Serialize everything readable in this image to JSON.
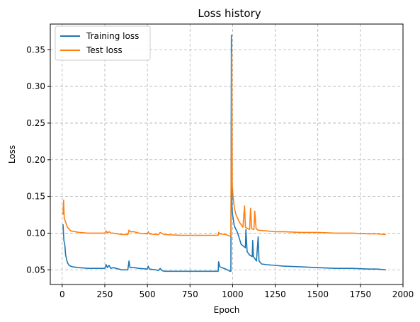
{
  "chart_data": {
    "type": "line",
    "title": "Loss history",
    "xlabel": "Epoch",
    "ylabel": "Loss",
    "xlim": [
      -70,
      2000
    ],
    "ylim": [
      0.03,
      0.385
    ],
    "xticks": [
      0,
      250,
      500,
      750,
      1000,
      1250,
      1500,
      1750,
      2000
    ],
    "yticks": [
      0.05,
      0.1,
      0.15,
      0.2,
      0.25,
      0.3,
      0.35
    ],
    "ytick_labels": [
      "0.05",
      "0.10",
      "0.15",
      "0.20",
      "0.25",
      "0.30",
      "0.35"
    ],
    "grid": true,
    "legend_position": "upper-left",
    "series": [
      {
        "name": "Training loss",
        "color": "#1f77b4",
        "points": [
          [
            5,
            0.112
          ],
          [
            10,
            0.09
          ],
          [
            15,
            0.085
          ],
          [
            20,
            0.07
          ],
          [
            30,
            0.06
          ],
          [
            40,
            0.056
          ],
          [
            60,
            0.054
          ],
          [
            100,
            0.053
          ],
          [
            150,
            0.052
          ],
          [
            200,
            0.052
          ],
          [
            250,
            0.052
          ],
          [
            258,
            0.057
          ],
          [
            265,
            0.053
          ],
          [
            275,
            0.056
          ],
          [
            285,
            0.052
          ],
          [
            300,
            0.053
          ],
          [
            350,
            0.05
          ],
          [
            385,
            0.05
          ],
          [
            392,
            0.062
          ],
          [
            398,
            0.053
          ],
          [
            420,
            0.053
          ],
          [
            450,
            0.052
          ],
          [
            500,
            0.051
          ],
          [
            505,
            0.055
          ],
          [
            512,
            0.051
          ],
          [
            550,
            0.05
          ],
          [
            565,
            0.049
          ],
          [
            575,
            0.052
          ],
          [
            585,
            0.049
          ],
          [
            600,
            0.048
          ],
          [
            700,
            0.048
          ],
          [
            800,
            0.048
          ],
          [
            900,
            0.048
          ],
          [
            915,
            0.048
          ],
          [
            918,
            0.061
          ],
          [
            925,
            0.054
          ],
          [
            960,
            0.051
          ],
          [
            985,
            0.048
          ],
          [
            990,
            0.048
          ],
          [
            993,
            0.37
          ],
          [
            996,
            0.135
          ],
          [
            1000,
            0.125
          ],
          [
            1010,
            0.11
          ],
          [
            1030,
            0.1
          ],
          [
            1050,
            0.085
          ],
          [
            1075,
            0.08
          ],
          [
            1078,
            0.105
          ],
          [
            1085,
            0.075
          ],
          [
            1100,
            0.07
          ],
          [
            1115,
            0.068
          ],
          [
            1118,
            0.09
          ],
          [
            1122,
            0.068
          ],
          [
            1140,
            0.062
          ],
          [
            1150,
            0.095
          ],
          [
            1155,
            0.062
          ],
          [
            1170,
            0.058
          ],
          [
            1200,
            0.057
          ],
          [
            1250,
            0.056
          ],
          [
            1300,
            0.055
          ],
          [
            1400,
            0.054
          ],
          [
            1500,
            0.053
          ],
          [
            1600,
            0.052
          ],
          [
            1700,
            0.052
          ],
          [
            1800,
            0.051
          ],
          [
            1850,
            0.051
          ],
          [
            1900,
            0.05
          ]
        ]
      },
      {
        "name": "Test loss",
        "color": "#ff7f0e",
        "points": [
          [
            5,
            0.125
          ],
          [
            8,
            0.145
          ],
          [
            12,
            0.12
          ],
          [
            20,
            0.115
          ],
          [
            30,
            0.108
          ],
          [
            50,
            0.103
          ],
          [
            100,
            0.101
          ],
          [
            150,
            0.1
          ],
          [
            200,
            0.1
          ],
          [
            250,
            0.1
          ],
          [
            258,
            0.103
          ],
          [
            265,
            0.1
          ],
          [
            275,
            0.102
          ],
          [
            285,
            0.1
          ],
          [
            300,
            0.1
          ],
          [
            350,
            0.098
          ],
          [
            385,
            0.098
          ],
          [
            392,
            0.104
          ],
          [
            400,
            0.102
          ],
          [
            420,
            0.102
          ],
          [
            450,
            0.1
          ],
          [
            500,
            0.099
          ],
          [
            505,
            0.102
          ],
          [
            512,
            0.099
          ],
          [
            550,
            0.098
          ],
          [
            565,
            0.098
          ],
          [
            575,
            0.101
          ],
          [
            590,
            0.099
          ],
          [
            600,
            0.098
          ],
          [
            700,
            0.097
          ],
          [
            800,
            0.097
          ],
          [
            900,
            0.097
          ],
          [
            915,
            0.097
          ],
          [
            918,
            0.101
          ],
          [
            925,
            0.099
          ],
          [
            960,
            0.098
          ],
          [
            985,
            0.096
          ],
          [
            990,
            0.096
          ],
          [
            995,
            0.345
          ],
          [
            998,
            0.165
          ],
          [
            1003,
            0.15
          ],
          [
            1010,
            0.135
          ],
          [
            1020,
            0.125
          ],
          [
            1040,
            0.115
          ],
          [
            1060,
            0.108
          ],
          [
            1070,
            0.137
          ],
          [
            1075,
            0.108
          ],
          [
            1090,
            0.106
          ],
          [
            1100,
            0.105
          ],
          [
            1105,
            0.134
          ],
          [
            1112,
            0.106
          ],
          [
            1125,
            0.105
          ],
          [
            1130,
            0.13
          ],
          [
            1138,
            0.106
          ],
          [
            1150,
            0.104
          ],
          [
            1200,
            0.103
          ],
          [
            1250,
            0.102
          ],
          [
            1300,
            0.102
          ],
          [
            1400,
            0.101
          ],
          [
            1500,
            0.101
          ],
          [
            1600,
            0.1
          ],
          [
            1700,
            0.1
          ],
          [
            1800,
            0.099
          ],
          [
            1850,
            0.099
          ],
          [
            1900,
            0.098
          ]
        ]
      }
    ]
  }
}
